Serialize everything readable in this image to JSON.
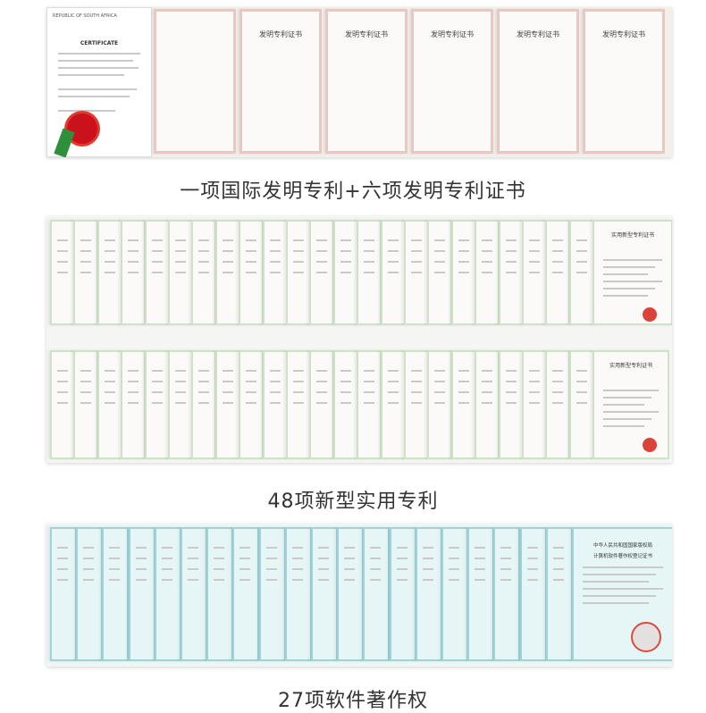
{
  "sections": [
    {
      "caption": "一项国际发明专利+六项发明专利证书"
    },
    {
      "caption": "48项新型实用专利"
    },
    {
      "caption": "27项软件著作权"
    }
  ],
  "invention_cert": {
    "title": "发明专利证书",
    "international_title": "CERTIFICATE"
  },
  "utility_cert": {
    "title": "实用新型专利证书"
  },
  "software_cert": {
    "line1": "中华人民共和国国家版权局",
    "line2": "计算机软件著作权登记证书"
  }
}
